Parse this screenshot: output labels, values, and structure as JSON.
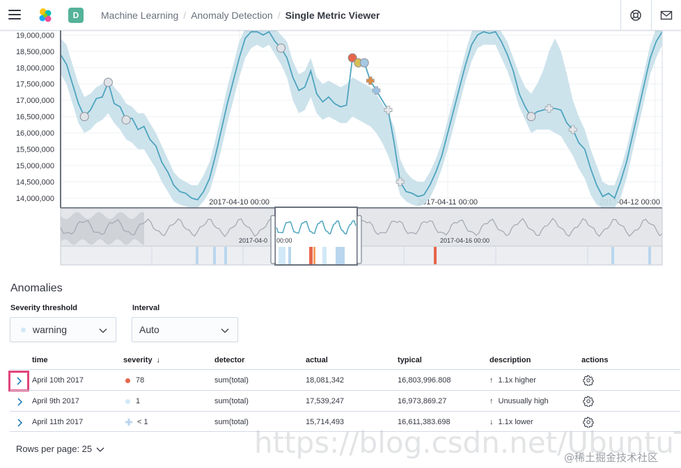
{
  "header": {
    "breadcrumbs": [
      "Machine Learning",
      "Anomaly Detection",
      "Single Metric Viewer"
    ],
    "space_initial": "D",
    "icons": [
      "menu-icon",
      "elastic-logo",
      "help-icon",
      "mail-icon"
    ]
  },
  "chart_data": {
    "type": "line",
    "y_ticks": [
      "19,000,000",
      "18,500,000",
      "18,000,000",
      "17,500,000",
      "17,000,000",
      "16,500,000",
      "16,000,000",
      "15,500,000",
      "15,000,000",
      "14,500,000",
      "14,000,000"
    ],
    "x_ticks": [
      "2017-04-10 00:00",
      "2017-04-11 00:00",
      "2017-04-12 00:00"
    ],
    "ylim": [
      13700000,
      19050000
    ],
    "series_color": "#4ea4be",
    "band_color": "#c8e0ea",
    "actual": [
      18400000,
      18100000,
      17500000,
      16900000,
      16500000,
      16700000,
      17050000,
      17100000,
      17550000,
      16900000,
      16800000,
      16400000,
      16450000,
      16100000,
      16200000,
      15800000,
      15600000,
      15100000,
      14800000,
      14400000,
      14200000,
      14150000,
      14000000,
      13950000,
      14200000,
      14600000,
      15300000,
      16100000,
      16900000,
      17600000,
      18300000,
      18900000,
      19100000,
      19100000,
      19000000,
      19100000,
      18800000,
      18600000,
      18300000,
      17700000,
      17300000,
      17400000,
      17900000,
      17200000,
      16950000,
      17100000,
      16900000,
      16800000,
      16850000,
      18300000,
      18150000,
      18150000,
      17600000,
      17300000,
      17000000,
      16700000,
      15700000,
      14500000,
      14200000,
      14150000,
      14050000,
      14100000,
      14400000,
      14800000,
      15300000,
      16000000,
      16700000,
      17400000,
      18100000,
      18700000,
      19000000,
      19100000,
      19050000,
      19100000,
      18800000,
      18400000,
      17900000,
      17200000,
      16800000,
      16500000,
      16650000,
      16700000,
      16750000,
      16750000,
      16700000,
      16300000,
      16100000,
      15700000,
      15500000,
      14900000,
      14400000,
      14050000,
      14150000,
      14000000,
      14500000,
      15100000,
      15900000,
      16700000,
      17500000,
      18300000,
      18800000,
      19100000
    ],
    "band_upper": [
      18900000,
      18700000,
      18100000,
      17500000,
      17100000,
      17200000,
      17400000,
      17500000,
      17700000,
      17400000,
      17200000,
      16900000,
      16800000,
      16600000,
      16600000,
      16300000,
      16000000,
      15600000,
      15200000,
      14800000,
      14600000,
      14500000,
      14400000,
      14400000,
      14700000,
      15100000,
      15800000,
      16600000,
      17400000,
      18100000,
      18800000,
      19200000,
      19300000,
      19300000,
      19300000,
      19300000,
      19200000,
      19000000,
      18800000,
      18200000,
      17800000,
      17900000,
      18300000,
      17700000,
      17500000,
      17600000,
      17500000,
      17400000,
      17500000,
      17700000,
      17600000,
      17500000,
      17400000,
      17200000,
      16900000,
      16600000,
      16200000,
      15200000,
      14800000,
      14600000,
      14500000,
      14500000,
      14800000,
      15200000,
      15700000,
      16400000,
      17100000,
      17800000,
      18500000,
      19100000,
      19300000,
      19300000,
      19300000,
      19300000,
      19100000,
      18800000,
      18300000,
      17800000,
      17400000,
      17200000,
      17500000,
      17900000,
      18500000,
      18900000,
      18500000,
      17800000,
      17000000,
      16500000,
      16100000,
      15500000,
      15000000,
      14500000,
      14400000,
      14400000,
      14900000,
      15500000,
      16300000,
      17100000,
      17900000,
      18700000,
      19200000,
      19300000
    ],
    "band_lower": [
      17800000,
      17500000,
      16900000,
      16300000,
      16000000,
      16100000,
      16300000,
      16400000,
      16600000,
      16300000,
      16100000,
      15800000,
      15700000,
      15500000,
      15500000,
      15200000,
      14900000,
      14500000,
      14200000,
      13900000,
      13800000,
      13750000,
      13700000,
      13700000,
      13900000,
      14200000,
      14800000,
      15500000,
      16300000,
      17000000,
      17700000,
      18300000,
      18600000,
      18700000,
      18600000,
      18700000,
      18400000,
      18100000,
      17700000,
      17000000,
      16600000,
      16700000,
      17100000,
      16600000,
      16400000,
      16500000,
      16400000,
      16300000,
      16300000,
      16500000,
      16400000,
      16300000,
      16200000,
      16000000,
      15700000,
      15300000,
      14800000,
      14100000,
      13900000,
      13800000,
      13750000,
      13800000,
      14000000,
      14400000,
      14900000,
      15500000,
      16200000,
      16900000,
      17600000,
      18200000,
      18600000,
      18700000,
      18700000,
      18700000,
      18300000,
      17900000,
      17400000,
      16800000,
      16400000,
      16000000,
      16100000,
      16100000,
      16100000,
      16000000,
      15900000,
      15600000,
      15300000,
      14900000,
      14600000,
      14100000,
      13800000,
      13700000,
      13700000,
      13700000,
      14000000,
      14600000,
      15400000,
      16200000,
      17000000,
      17800000,
      18300000,
      18700000
    ],
    "anomaly_points": [
      {
        "i": 4,
        "severity": "warning",
        "shape": "circle"
      },
      {
        "i": 8,
        "severity": "warning",
        "shape": "circle"
      },
      {
        "i": 11,
        "severity": "warning",
        "shape": "circle"
      },
      {
        "i": 37,
        "severity": "warning",
        "shape": "circle"
      },
      {
        "i": 49,
        "severity": "critical",
        "shape": "circle"
      },
      {
        "i": 50,
        "severity": "minor",
        "shape": "circle"
      },
      {
        "i": 51,
        "severity": "warning",
        "shape": "circle"
      },
      {
        "i": 52,
        "severity": "major",
        "shape": "cross"
      },
      {
        "i": 53,
        "severity": "low",
        "shape": "cross"
      },
      {
        "i": 55,
        "severity": "none",
        "shape": "cross"
      },
      {
        "i": 57,
        "severity": "none",
        "shape": "cross"
      },
      {
        "i": 79,
        "severity": "warning",
        "shape": "circle"
      },
      {
        "i": 82,
        "severity": "none",
        "shape": "cross"
      },
      {
        "i": 86,
        "severity": "none",
        "shape": "cross"
      }
    ]
  },
  "context_chart": {
    "labels": [
      "2017-04-0",
      "00:00",
      "2017-04-16 00:00"
    ],
    "swimlane_marks": [
      "warning",
      "warning",
      "critical",
      "warning",
      "critical",
      "warning",
      "warning"
    ]
  },
  "anomalies": {
    "title": "Anomalies",
    "severity_label": "Severity threshold",
    "severity_value": "warning",
    "interval_label": "Interval",
    "interval_value": "Auto",
    "columns": [
      "time",
      "severity",
      "detector",
      "actual",
      "typical",
      "description",
      "actions"
    ],
    "sort_arrow": "↓",
    "rows": [
      {
        "time": "April 10th 2017",
        "severity": "78",
        "sev_color": "#e7664c",
        "sev_shape": "circle",
        "detector": "sum(total)",
        "actual": "18,081,342",
        "typical": "16,803,996.808",
        "dir": "↑",
        "description": "1.1x higher"
      },
      {
        "time": "April 9th 2017",
        "severity": "1",
        "sev_color": "#d2e9f7",
        "sev_shape": "circle",
        "detector": "sum(total)",
        "actual": "17,539,247",
        "typical": "16,973,869.27",
        "dir": "↑",
        "description": "Unusually high"
      },
      {
        "time": "April 11th 2017",
        "severity": "< 1",
        "sev_color": "#b9d6ee",
        "sev_shape": "cross",
        "detector": "sum(total)",
        "actual": "15,714,493",
        "typical": "16,611,383.698",
        "dir": "↓",
        "description": "1.1x lower"
      }
    ],
    "rows_per_page": "Rows per page: 25"
  },
  "watermark": {
    "url": "https://blog.csdn.net/UbuntuTouch",
    "credit": "@稀土掘金技术社区"
  }
}
